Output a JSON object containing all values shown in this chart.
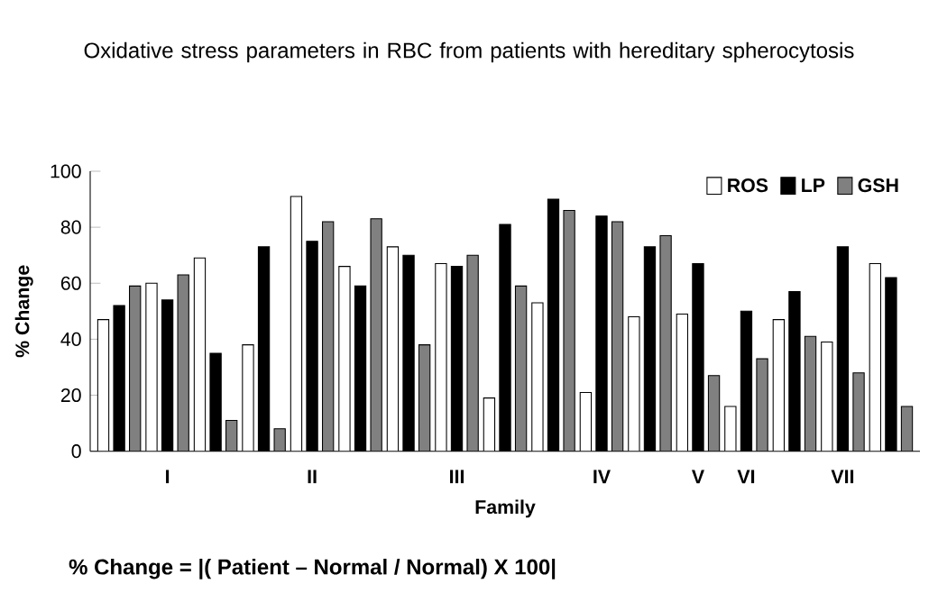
{
  "chart_data": {
    "type": "bar",
    "title": "Oxidative stress parameters in RBC from patients with hereditary spherocytosis",
    "xlabel": "Family",
    "ylabel": "% Change",
    "annotations": [
      "% Change = |( Patient – Normal / Normal) X 100|"
    ],
    "categories": [
      null,
      "I",
      null,
      null,
      "II",
      null,
      null,
      "III",
      null,
      null,
      "IV",
      null,
      "V",
      "VI",
      null,
      "VII",
      null
    ],
    "series": [
      {
        "name": "ROS",
        "color": "#ffffff",
        "values": [
          47,
          60,
          69,
          38,
          91,
          66,
          73,
          67,
          19,
          53,
          21,
          48,
          49,
          16,
          47,
          39,
          67
        ]
      },
      {
        "name": "LP",
        "color": "#000000",
        "values": [
          52,
          54,
          35,
          73,
          75,
          59,
          70,
          66,
          81,
          90,
          84,
          73,
          67,
          50,
          57,
          73,
          62
        ]
      },
      {
        "name": "GSH",
        "color": "#808080",
        "values": [
          59,
          63,
          11,
          8,
          82,
          83,
          38,
          70,
          59,
          86,
          82,
          77,
          27,
          33,
          41,
          28,
          16
        ]
      }
    ],
    "ylim": [
      0,
      100
    ],
    "yticks": [
      0,
      20,
      40,
      60,
      80,
      100
    ],
    "legend": "top right"
  }
}
